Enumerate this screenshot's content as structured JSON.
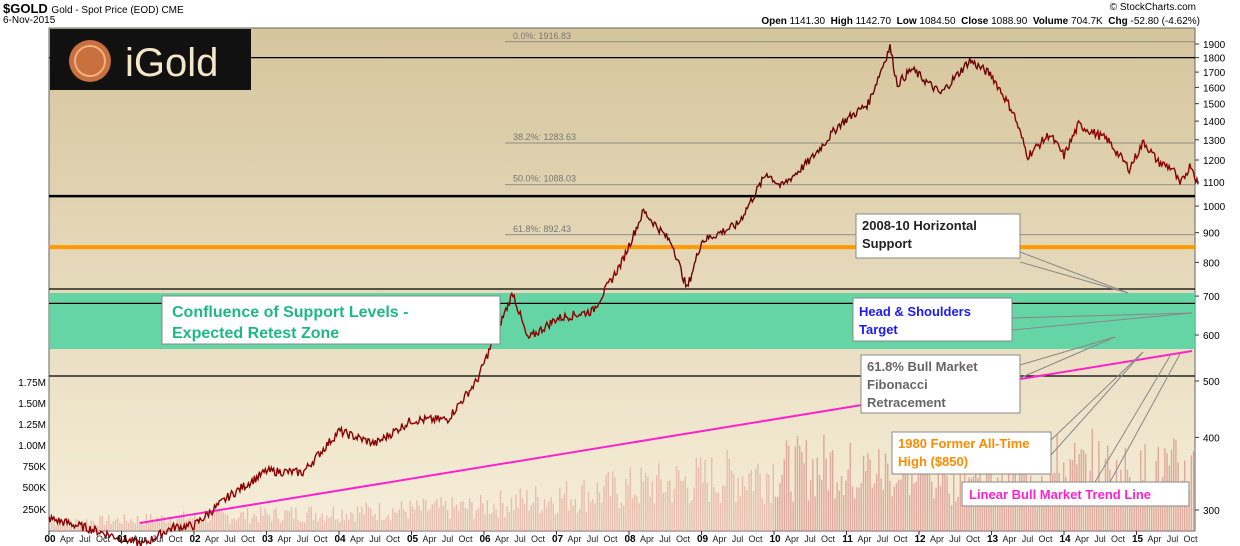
{
  "header": {
    "symbol": "$GOLD",
    "description": "Gold - Spot Price (EOD) CME",
    "date": "6-Nov-2015",
    "credit": "© StockCharts.com",
    "quote": {
      "open": "1141.30",
      "high": "1142.70",
      "low": "1084.50",
      "close": "1088.90",
      "volume": "704.7K",
      "chg": "-52.80 (-4.62%)"
    }
  },
  "logo": {
    "text": "iGold"
  },
  "colors": {
    "price": "#8b0000",
    "trend": "#ff22cc",
    "zone": "#4fd3a0",
    "orange": "#ff9900",
    "bg_top": "#d9c9a3",
    "bg_bottom": "#f5ecd6"
  },
  "chart_data": {
    "type": "line",
    "y_axis": {
      "min": 250,
      "max": 1950,
      "scale": "log",
      "ticks": [
        300,
        400,
        500,
        600,
        700,
        800,
        900,
        1000,
        1100,
        1200,
        1300,
        1400,
        1500,
        1600,
        1700,
        1800,
        1900
      ]
    },
    "volume_axis": {
      "ticks": [
        "250K",
        "500K",
        "750K",
        "1.00M",
        "1.25M",
        "1.50M",
        "1.75M"
      ]
    },
    "x_axis": {
      "year_labels": [
        "00",
        "01",
        "02",
        "03",
        "04",
        "05",
        "06",
        "07",
        "08",
        "09",
        "10",
        "11",
        "12",
        "13",
        "14",
        "15"
      ],
      "month_labels": [
        "Apr",
        "Jul",
        "Oct"
      ]
    },
    "series": [
      {
        "values": [
          [
            2000.0,
            290
          ],
          [
            2000.5,
            280
          ],
          [
            2001.0,
            268
          ],
          [
            2001.3,
            262
          ],
          [
            2001.7,
            280
          ],
          [
            2002.0,
            282
          ],
          [
            2002.5,
            318
          ],
          [
            2003.0,
            350
          ],
          [
            2003.5,
            348
          ],
          [
            2004.0,
            410
          ],
          [
            2004.5,
            390
          ],
          [
            2005.0,
            428
          ],
          [
            2005.5,
            430
          ],
          [
            2005.9,
            500
          ],
          [
            2006.4,
            710
          ],
          [
            2006.6,
            590
          ],
          [
            2007.0,
            640
          ],
          [
            2007.5,
            660
          ],
          [
            2007.9,
            800
          ],
          [
            2008.2,
            980
          ],
          [
            2008.6,
            860
          ],
          [
            2008.8,
            720
          ],
          [
            2009.0,
            870
          ],
          [
            2009.5,
            930
          ],
          [
            2009.9,
            1140
          ],
          [
            2010.1,
            1080
          ],
          [
            2010.5,
            1200
          ],
          [
            2010.9,
            1380
          ],
          [
            2011.3,
            1500
          ],
          [
            2011.6,
            1880
          ],
          [
            2011.7,
            1620
          ],
          [
            2011.9,
            1720
          ],
          [
            2012.3,
            1560
          ],
          [
            2012.7,
            1780
          ],
          [
            2013.0,
            1680
          ],
          [
            2013.3,
            1450
          ],
          [
            2013.5,
            1220
          ],
          [
            2013.8,
            1330
          ],
          [
            2014.0,
            1220
          ],
          [
            2014.2,
            1380
          ],
          [
            2014.6,
            1300
          ],
          [
            2014.9,
            1160
          ],
          [
            2015.1,
            1290
          ],
          [
            2015.3,
            1190
          ],
          [
            2015.5,
            1160
          ],
          [
            2015.6,
            1085
          ],
          [
            2015.7,
            1150
          ],
          [
            2015.75,
            1180
          ],
          [
            2015.85,
            1089
          ]
        ]
      }
    ],
    "fibonacci": [
      {
        "label": "0.0%: 1916.83",
        "value": 1916.83
      },
      {
        "label": "38.2%: 1283.63",
        "value": 1283.63
      },
      {
        "label": "50.0%: 1088.03",
        "value": 1088.03
      },
      {
        "label": "61.8%: 892.43",
        "value": 892.43
      }
    ],
    "horizontal_lines": [
      1800,
      1040,
      850,
      720,
      680,
      510
    ],
    "annotations": [
      {
        "text": [
          "2008-10 Horizontal",
          "Support"
        ]
      },
      {
        "text": [
          "Confluence of Support Levels -",
          "Expected Retest Zone"
        ]
      },
      {
        "text": [
          "Head & Shoulders",
          "Target"
        ]
      },
      {
        "text": [
          "61.8% Bull Market",
          "Fibonacci",
          "Retracement"
        ]
      },
      {
        "text": [
          "1980 Former All-Time",
          "High ($850)"
        ]
      },
      {
        "text": [
          "Linear Bull Market Trend Line"
        ]
      }
    ]
  }
}
